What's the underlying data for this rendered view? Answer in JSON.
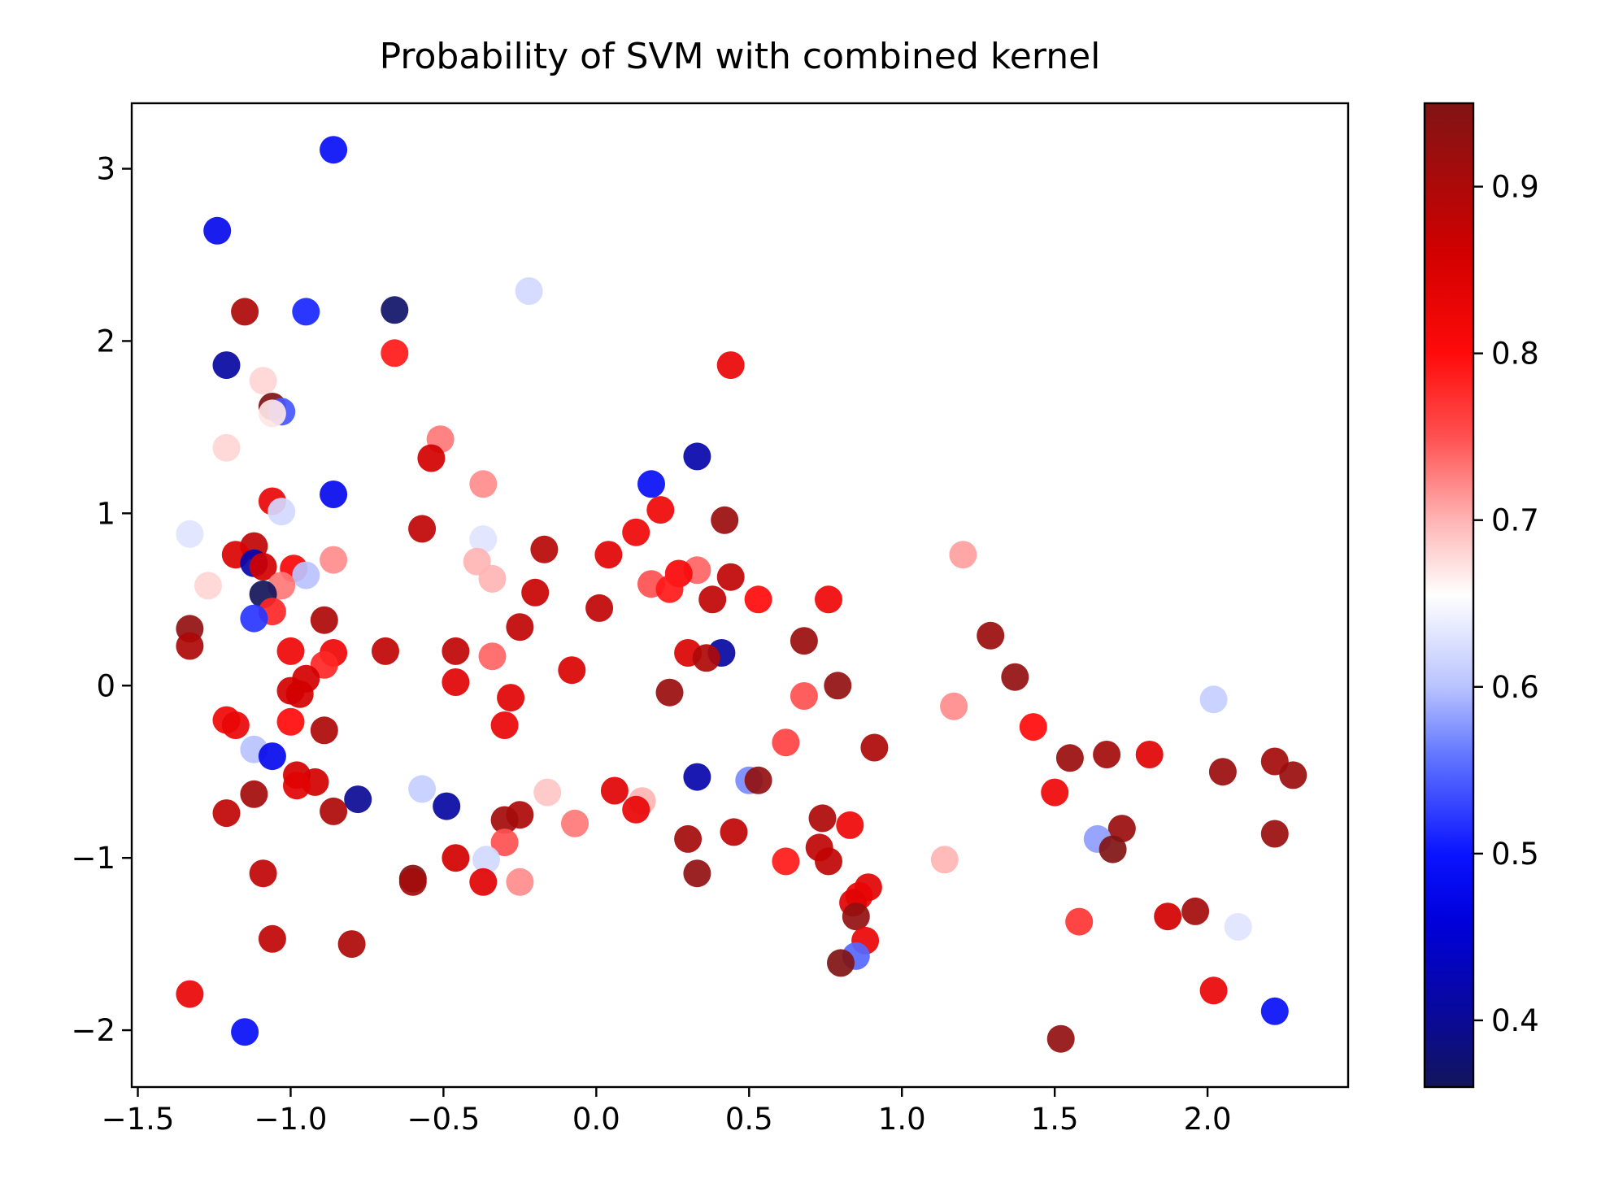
{
  "chart_data": {
    "type": "scatter",
    "title": "Probability of SVM with combined kernel",
    "xlabel": "",
    "ylabel": "",
    "xlim": [
      -1.52,
      2.46
    ],
    "ylim": [
      -2.33,
      3.38
    ],
    "xticks": [
      -1.5,
      -1.0,
      -0.5,
      0.0,
      0.5,
      1.0,
      1.5,
      2.0
    ],
    "xtick_labels": [
      "−1.5",
      "−1.0",
      "−0.5",
      "0.0",
      "0.5",
      "1.0",
      "1.5",
      "2.0"
    ],
    "yticks": [
      -2,
      -1,
      0,
      1,
      2,
      3
    ],
    "ytick_labels": [
      "−2",
      "−1",
      "0",
      "1",
      "2",
      "3"
    ],
    "grid": false,
    "legend": "none",
    "colorbar": {
      "colormap": "seismic",
      "range": [
        0.36,
        0.95
      ],
      "ticks": [
        0.4,
        0.5,
        0.6,
        0.7,
        0.8,
        0.9
      ],
      "tick_labels": [
        "0.4",
        "0.5",
        "0.6",
        "0.7",
        "0.8",
        "0.9"
      ],
      "stops": [
        {
          "v": 0.36,
          "color": "#12155a"
        },
        {
          "v": 0.4,
          "color": "#0a0a96"
        },
        {
          "v": 0.46,
          "color": "#0000dc"
        },
        {
          "v": 0.5,
          "color": "#0a14ff"
        },
        {
          "v": 0.56,
          "color": "#6478ff"
        },
        {
          "v": 0.6,
          "color": "#b9c3ff"
        },
        {
          "v": 0.655,
          "color": "#ffffff"
        },
        {
          "v": 0.7,
          "color": "#ffb4b4"
        },
        {
          "v": 0.75,
          "color": "#ff5050"
        },
        {
          "v": 0.8,
          "color": "#ff0a0a"
        },
        {
          "v": 0.86,
          "color": "#d20000"
        },
        {
          "v": 0.95,
          "color": "#801414"
        }
      ]
    },
    "points": [
      {
        "x": -0.86,
        "y": 3.11,
        "p": 0.49
      },
      {
        "x": -1.24,
        "y": 2.64,
        "p": 0.48
      },
      {
        "x": -1.15,
        "y": 2.17,
        "p": 0.9
      },
      {
        "x": -0.95,
        "y": 2.17,
        "p": 0.51
      },
      {
        "x": -0.66,
        "y": 2.18,
        "p": 0.37
      },
      {
        "x": -0.22,
        "y": 2.29,
        "p": 0.62
      },
      {
        "x": -1.21,
        "y": 1.86,
        "p": 0.41
      },
      {
        "x": -0.66,
        "y": 1.93,
        "p": 0.79
      },
      {
        "x": 0.44,
        "y": 1.86,
        "p": 0.83
      },
      {
        "x": -1.09,
        "y": 1.77,
        "p": 0.68
      },
      {
        "x": -1.06,
        "y": 1.62,
        "p": 0.95
      },
      {
        "x": -1.03,
        "y": 1.59,
        "p": 0.54
      },
      {
        "x": -1.06,
        "y": 1.58,
        "p": 0.67
      },
      {
        "x": -1.21,
        "y": 1.38,
        "p": 0.68
      },
      {
        "x": -0.51,
        "y": 1.43,
        "p": 0.73
      },
      {
        "x": -0.54,
        "y": 1.32,
        "p": 0.86
      },
      {
        "x": 0.33,
        "y": 1.33,
        "p": 0.42
      },
      {
        "x": -0.37,
        "y": 1.17,
        "p": 0.72
      },
      {
        "x": 0.18,
        "y": 1.17,
        "p": 0.49
      },
      {
        "x": -1.06,
        "y": 1.07,
        "p": 0.83
      },
      {
        "x": -0.86,
        "y": 1.11,
        "p": 0.48
      },
      {
        "x": -1.03,
        "y": 1.01,
        "p": 0.62
      },
      {
        "x": 0.21,
        "y": 1.02,
        "p": 0.82
      },
      {
        "x": 0.42,
        "y": 0.96,
        "p": 0.92
      },
      {
        "x": -1.33,
        "y": 0.88,
        "p": 0.63
      },
      {
        "x": -0.57,
        "y": 0.91,
        "p": 0.88
      },
      {
        "x": 0.13,
        "y": 0.89,
        "p": 0.82
      },
      {
        "x": -0.37,
        "y": 0.85,
        "p": 0.63
      },
      {
        "x": -1.12,
        "y": 0.81,
        "p": 0.88
      },
      {
        "x": -1.18,
        "y": 0.76,
        "p": 0.85
      },
      {
        "x": -0.17,
        "y": 0.79,
        "p": 0.89
      },
      {
        "x": 1.2,
        "y": 0.76,
        "p": 0.71
      },
      {
        "x": -0.86,
        "y": 0.73,
        "p": 0.72
      },
      {
        "x": -0.39,
        "y": 0.72,
        "p": 0.7
      },
      {
        "x": 0.04,
        "y": 0.76,
        "p": 0.84
      },
      {
        "x": -1.12,
        "y": 0.71,
        "p": 0.42
      },
      {
        "x": -1.09,
        "y": 0.69,
        "p": 0.86
      },
      {
        "x": -0.99,
        "y": 0.68,
        "p": 0.81
      },
      {
        "x": 0.33,
        "y": 0.67,
        "p": 0.74
      },
      {
        "x": 0.27,
        "y": 0.65,
        "p": 0.81
      },
      {
        "x": 0.44,
        "y": 0.63,
        "p": 0.88
      },
      {
        "x": -0.95,
        "y": 0.64,
        "p": 0.6
      },
      {
        "x": -0.34,
        "y": 0.62,
        "p": 0.7
      },
      {
        "x": 0.18,
        "y": 0.59,
        "p": 0.75
      },
      {
        "x": -1.27,
        "y": 0.58,
        "p": 0.68
      },
      {
        "x": -1.03,
        "y": 0.58,
        "p": 0.73
      },
      {
        "x": 0.24,
        "y": 0.56,
        "p": 0.79
      },
      {
        "x": -1.09,
        "y": 0.53,
        "p": 0.36
      },
      {
        "x": -0.2,
        "y": 0.54,
        "p": 0.87
      },
      {
        "x": 0.38,
        "y": 0.5,
        "p": 0.88
      },
      {
        "x": 0.53,
        "y": 0.5,
        "p": 0.8
      },
      {
        "x": 0.76,
        "y": 0.5,
        "p": 0.82
      },
      {
        "x": 0.01,
        "y": 0.45,
        "p": 0.88
      },
      {
        "x": -1.06,
        "y": 0.43,
        "p": 0.78
      },
      {
        "x": -1.12,
        "y": 0.39,
        "p": 0.52
      },
      {
        "x": -0.89,
        "y": 0.38,
        "p": 0.9
      },
      {
        "x": -1.33,
        "y": 0.33,
        "p": 0.93
      },
      {
        "x": -0.25,
        "y": 0.34,
        "p": 0.88
      },
      {
        "x": 1.29,
        "y": 0.29,
        "p": 0.92
      },
      {
        "x": 0.68,
        "y": 0.26,
        "p": 0.92
      },
      {
        "x": -1.33,
        "y": 0.23,
        "p": 0.9
      },
      {
        "x": -0.69,
        "y": 0.2,
        "p": 0.88
      },
      {
        "x": -0.46,
        "y": 0.2,
        "p": 0.88
      },
      {
        "x": -1.0,
        "y": 0.2,
        "p": 0.82
      },
      {
        "x": -0.86,
        "y": 0.19,
        "p": 0.82
      },
      {
        "x": 0.41,
        "y": 0.19,
        "p": 0.41
      },
      {
        "x": 0.3,
        "y": 0.19,
        "p": 0.85
      },
      {
        "x": -0.34,
        "y": 0.17,
        "p": 0.74
      },
      {
        "x": 0.36,
        "y": 0.16,
        "p": 0.9
      },
      {
        "x": -0.89,
        "y": 0.12,
        "p": 0.78
      },
      {
        "x": -0.08,
        "y": 0.09,
        "p": 0.85
      },
      {
        "x": 1.37,
        "y": 0.05,
        "p": 0.93
      },
      {
        "x": -0.95,
        "y": 0.04,
        "p": 0.86
      },
      {
        "x": -0.46,
        "y": 0.02,
        "p": 0.84
      },
      {
        "x": 0.79,
        "y": 0.0,
        "p": 0.93
      },
      {
        "x": -1.0,
        "y": -0.03,
        "p": 0.86
      },
      {
        "x": -0.97,
        "y": -0.05,
        "p": 0.86
      },
      {
        "x": 0.24,
        "y": -0.04,
        "p": 0.92
      },
      {
        "x": -0.28,
        "y": -0.07,
        "p": 0.84
      },
      {
        "x": 0.68,
        "y": -0.06,
        "p": 0.75
      },
      {
        "x": 2.02,
        "y": -0.08,
        "p": 0.61
      },
      {
        "x": 1.17,
        "y": -0.12,
        "p": 0.72
      },
      {
        "x": -1.21,
        "y": -0.2,
        "p": 0.82
      },
      {
        "x": -1.0,
        "y": -0.21,
        "p": 0.8
      },
      {
        "x": -0.3,
        "y": -0.23,
        "p": 0.83
      },
      {
        "x": -1.18,
        "y": -0.23,
        "p": 0.83
      },
      {
        "x": 1.43,
        "y": -0.24,
        "p": 0.8
      },
      {
        "x": -0.89,
        "y": -0.26,
        "p": 0.9
      },
      {
        "x": 0.62,
        "y": -0.33,
        "p": 0.76
      },
      {
        "x": 0.91,
        "y": -0.36,
        "p": 0.9
      },
      {
        "x": -1.12,
        "y": -0.37,
        "p": 0.6
      },
      {
        "x": -1.06,
        "y": -0.41,
        "p": 0.48
      },
      {
        "x": 1.81,
        "y": -0.4,
        "p": 0.84
      },
      {
        "x": 1.67,
        "y": -0.4,
        "p": 0.91
      },
      {
        "x": 1.55,
        "y": -0.42,
        "p": 0.92
      },
      {
        "x": 2.22,
        "y": -0.44,
        "p": 0.91
      },
      {
        "x": 2.05,
        "y": -0.5,
        "p": 0.92
      },
      {
        "x": 2.28,
        "y": -0.52,
        "p": 0.92
      },
      {
        "x": -0.98,
        "y": -0.52,
        "p": 0.86
      },
      {
        "x": 0.33,
        "y": -0.53,
        "p": 0.42
      },
      {
        "x": -0.92,
        "y": -0.56,
        "p": 0.86
      },
      {
        "x": 0.5,
        "y": -0.55,
        "p": 0.57
      },
      {
        "x": 0.53,
        "y": -0.55,
        "p": 0.93
      },
      {
        "x": -0.98,
        "y": -0.58,
        "p": 0.84
      },
      {
        "x": -0.57,
        "y": -0.6,
        "p": 0.61
      },
      {
        "x": 0.06,
        "y": -0.61,
        "p": 0.84
      },
      {
        "x": -0.16,
        "y": -0.62,
        "p": 0.69
      },
      {
        "x": 1.5,
        "y": -0.62,
        "p": 0.82
      },
      {
        "x": -1.12,
        "y": -0.63,
        "p": 0.91
      },
      {
        "x": -0.78,
        "y": -0.66,
        "p": 0.4
      },
      {
        "x": 0.15,
        "y": -0.67,
        "p": 0.7
      },
      {
        "x": -0.49,
        "y": -0.7,
        "p": 0.41
      },
      {
        "x": 0.13,
        "y": -0.72,
        "p": 0.83
      },
      {
        "x": -0.86,
        "y": -0.73,
        "p": 0.9
      },
      {
        "x": -1.21,
        "y": -0.74,
        "p": 0.88
      },
      {
        "x": -0.25,
        "y": -0.75,
        "p": 0.9
      },
      {
        "x": 0.74,
        "y": -0.77,
        "p": 0.9
      },
      {
        "x": -0.3,
        "y": -0.78,
        "p": 0.91
      },
      {
        "x": -0.07,
        "y": -0.8,
        "p": 0.73
      },
      {
        "x": 0.83,
        "y": -0.81,
        "p": 0.82
      },
      {
        "x": 1.72,
        "y": -0.83,
        "p": 0.92
      },
      {
        "x": 0.45,
        "y": -0.85,
        "p": 0.88
      },
      {
        "x": 2.22,
        "y": -0.86,
        "p": 0.92
      },
      {
        "x": 0.3,
        "y": -0.89,
        "p": 0.91
      },
      {
        "x": 1.64,
        "y": -0.89,
        "p": 0.58
      },
      {
        "x": -0.3,
        "y": -0.91,
        "p": 0.75
      },
      {
        "x": 0.73,
        "y": -0.94,
        "p": 0.88
      },
      {
        "x": 1.69,
        "y": -0.95,
        "p": 0.95
      },
      {
        "x": -0.46,
        "y": -1.0,
        "p": 0.86
      },
      {
        "x": -0.36,
        "y": -1.01,
        "p": 0.62
      },
      {
        "x": 1.14,
        "y": -1.01,
        "p": 0.7
      },
      {
        "x": 0.76,
        "y": -1.02,
        "p": 0.88
      },
      {
        "x": 0.62,
        "y": -1.02,
        "p": 0.79
      },
      {
        "x": -1.09,
        "y": -1.09,
        "p": 0.88
      },
      {
        "x": 0.33,
        "y": -1.09,
        "p": 0.93
      },
      {
        "x": -0.6,
        "y": -1.12,
        "p": 0.95
      },
      {
        "x": -0.6,
        "y": -1.14,
        "p": 0.91
      },
      {
        "x": -0.37,
        "y": -1.14,
        "p": 0.84
      },
      {
        "x": -0.25,
        "y": -1.14,
        "p": 0.72
      },
      {
        "x": 0.89,
        "y": -1.17,
        "p": 0.84
      },
      {
        "x": 0.86,
        "y": -1.22,
        "p": 0.83
      },
      {
        "x": 0.84,
        "y": -1.26,
        "p": 0.84
      },
      {
        "x": 0.85,
        "y": -1.34,
        "p": 0.93
      },
      {
        "x": 1.87,
        "y": -1.34,
        "p": 0.86
      },
      {
        "x": 1.96,
        "y": -1.31,
        "p": 0.91
      },
      {
        "x": 1.58,
        "y": -1.37,
        "p": 0.77
      },
      {
        "x": 2.1,
        "y": -1.4,
        "p": 0.63
      },
      {
        "x": -1.06,
        "y": -1.47,
        "p": 0.88
      },
      {
        "x": 0.88,
        "y": -1.48,
        "p": 0.83
      },
      {
        "x": -0.8,
        "y": -1.5,
        "p": 0.9
      },
      {
        "x": 0.85,
        "y": -1.57,
        "p": 0.55
      },
      {
        "x": 0.8,
        "y": -1.61,
        "p": 0.95
      },
      {
        "x": -1.33,
        "y": -1.79,
        "p": 0.83
      },
      {
        "x": 2.02,
        "y": -1.77,
        "p": 0.83
      },
      {
        "x": 2.22,
        "y": -1.89,
        "p": 0.49
      },
      {
        "x": -1.15,
        "y": -2.01,
        "p": 0.49
      },
      {
        "x": 1.52,
        "y": -2.05,
        "p": 0.93
      }
    ]
  }
}
